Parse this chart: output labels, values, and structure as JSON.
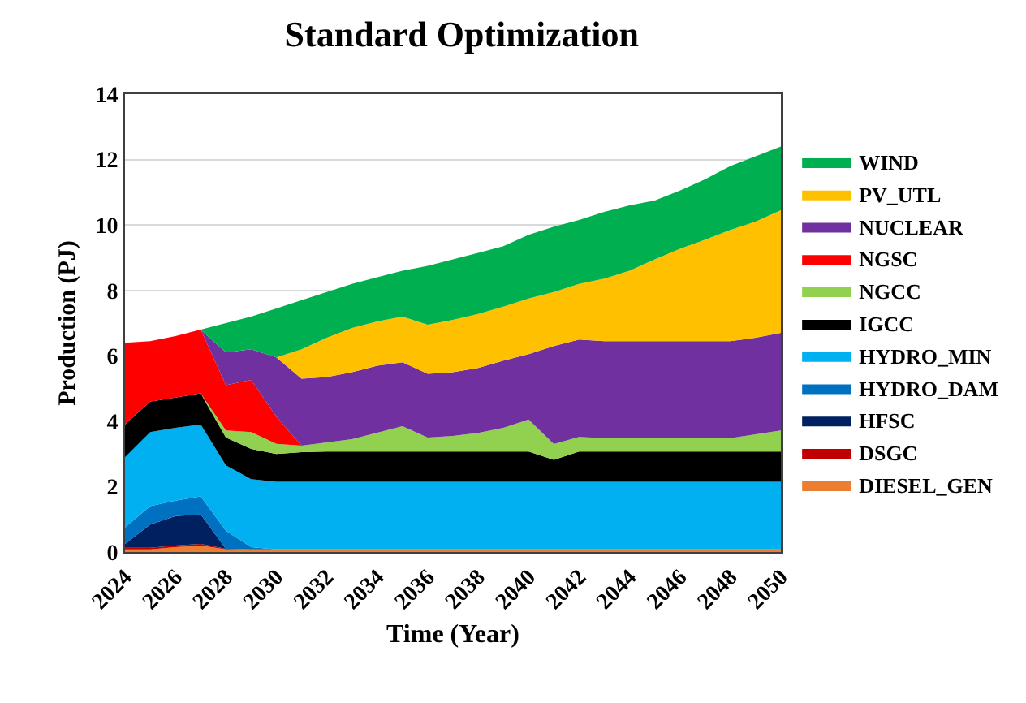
{
  "chart_data": {
    "type": "area",
    "stacked": true,
    "title": "Standard Optimization",
    "xlabel": "Time (Year)",
    "ylabel": "Production (PJ)",
    "x": [
      2024,
      2025,
      2026,
      2027,
      2028,
      2029,
      2030,
      2031,
      2032,
      2033,
      2034,
      2035,
      2036,
      2037,
      2038,
      2039,
      2040,
      2041,
      2042,
      2043,
      2044,
      2045,
      2046,
      2047,
      2048,
      2049,
      2050
    ],
    "xlim": [
      2024,
      2050
    ],
    "xticks": [
      2024,
      2026,
      2028,
      2030,
      2032,
      2034,
      2036,
      2038,
      2040,
      2042,
      2044,
      2046,
      2048,
      2050
    ],
    "ylim": [
      0,
      14
    ],
    "yticks": [
      0,
      2,
      4,
      6,
      8,
      10,
      12,
      14
    ],
    "grid": "y",
    "legend": "right",
    "series": [
      {
        "name": "DIESEL_GEN",
        "color": "#ed7d31",
        "values": [
          0.08,
          0.08,
          0.15,
          0.2,
          0.08,
          0.08,
          0.08,
          0.08,
          0.08,
          0.08,
          0.08,
          0.08,
          0.08,
          0.08,
          0.08,
          0.08,
          0.08,
          0.08,
          0.08,
          0.08,
          0.08,
          0.08,
          0.08,
          0.08,
          0.08,
          0.08,
          0.08
        ]
      },
      {
        "name": "DSGC",
        "color": "#c00000",
        "values": [
          0.05,
          0.05,
          0.05,
          0.05,
          0.02,
          0,
          0,
          0,
          0,
          0,
          0,
          0,
          0,
          0,
          0,
          0,
          0,
          0,
          0,
          0,
          0,
          0,
          0,
          0,
          0,
          0,
          0
        ]
      },
      {
        "name": "HFSC",
        "color": "#002060",
        "values": [
          0.12,
          0.71,
          0.9,
          0.9,
          0,
          0,
          0,
          0,
          0,
          0,
          0,
          0,
          0,
          0,
          0,
          0,
          0,
          0,
          0,
          0,
          0,
          0,
          0,
          0,
          0,
          0,
          0
        ]
      },
      {
        "name": "HYDRO_DAM",
        "color": "#0070c0",
        "values": [
          0.5,
          0.56,
          0.47,
          0.55,
          0.55,
          0.07,
          0,
          0,
          0,
          0,
          0,
          0,
          0,
          0,
          0,
          0,
          0,
          0,
          0,
          0,
          0,
          0,
          0,
          0,
          0,
          0,
          0
        ]
      },
      {
        "name": "HYDRO_MIN",
        "color": "#00b0f0",
        "values": [
          2.15,
          2.27,
          2.23,
          2.2,
          2.0,
          2.08,
          2.07,
          2.07,
          2.07,
          2.07,
          2.07,
          2.07,
          2.07,
          2.07,
          2.07,
          2.07,
          2.07,
          2.07,
          2.07,
          2.07,
          2.07,
          2.07,
          2.07,
          2.07,
          2.07,
          2.07,
          2.07
        ]
      },
      {
        "name": "IGCC",
        "color": "#000000",
        "values": [
          1.0,
          0.93,
          0.92,
          0.95,
          0.85,
          0.92,
          0.85,
          0.9,
          0.92,
          0.92,
          0.92,
          0.92,
          0.92,
          0.92,
          0.92,
          0.92,
          0.92,
          0.67,
          0.92,
          0.92,
          0.92,
          0.92,
          0.92,
          0.92,
          0.92,
          0.92,
          0.92
        ]
      },
      {
        "name": "NGCC",
        "color": "#92d050",
        "values": [
          null,
          null,
          null,
          0,
          0.22,
          0.52,
          0.31,
          0.2,
          0.28,
          0.38,
          0.58,
          0.78,
          0.43,
          0.48,
          0.57,
          0.73,
          0.98,
          0.48,
          0.45,
          0.41,
          0.41,
          0.41,
          0.41,
          0.41,
          0.41,
          0.53,
          0.65
        ]
      },
      {
        "name": "NGSC",
        "color": "#ff0000",
        "values": [
          2.5,
          1.85,
          1.88,
          1.95,
          1.38,
          1.59,
          0.83,
          0,
          0,
          0,
          0,
          0,
          0,
          0,
          0,
          0,
          0,
          0,
          0,
          0,
          0,
          0,
          0,
          0,
          0,
          0,
          0
        ]
      },
      {
        "name": "NUCLEAR",
        "color": "#7030a0",
        "values": [
          null,
          null,
          null,
          0,
          1.0,
          0.94,
          1.81,
          2.05,
          2.0,
          2.05,
          2.05,
          1.95,
          1.95,
          1.95,
          1.99,
          2.05,
          2.0,
          3.0,
          2.98,
          2.97,
          2.97,
          2.97,
          2.97,
          2.97,
          2.97,
          2.95,
          2.98
        ]
      },
      {
        "name": "PV_UTL",
        "color": "#ffc000",
        "values": [
          null,
          null,
          null,
          null,
          null,
          null,
          0,
          0.9,
          1.2,
          1.35,
          1.35,
          1.4,
          1.5,
          1.6,
          1.65,
          1.65,
          1.7,
          1.65,
          1.7,
          1.91,
          2.15,
          2.5,
          2.82,
          3.1,
          3.4,
          3.55,
          3.75
        ]
      },
      {
        "name": "WIND",
        "color": "#00b050",
        "values": [
          null,
          null,
          null,
          0,
          0.9,
          1.0,
          1.5,
          1.5,
          1.4,
          1.35,
          1.35,
          1.4,
          1.8,
          1.85,
          1.87,
          1.85,
          1.95,
          2.0,
          1.95,
          2.04,
          2.0,
          1.8,
          1.78,
          1.85,
          1.95,
          2.0,
          1.95
        ]
      }
    ]
  }
}
